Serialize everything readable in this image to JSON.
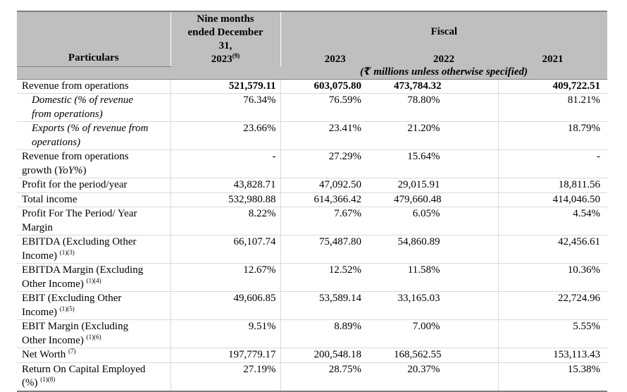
{
  "header": {
    "particulars": "Particulars",
    "nine_months_line1": "Nine months",
    "nine_months_line2": "ended December",
    "nine_months_line3": "31,",
    "nine_months_year": "2023",
    "nine_months_note": "(9)",
    "fiscal": "Fiscal",
    "years": [
      "2023",
      "2022",
      "2021"
    ],
    "units": "(₹ millions unless otherwise specified)"
  },
  "rows": [
    {
      "label": "Revenue from operations",
      "note": "",
      "values": [
        "521,579.11",
        "603,075.80",
        "473,784.32",
        "409,722.51"
      ]
    },
    {
      "label": "Domestic (% of revenue from operations)",
      "note": "",
      "values": [
        "76.34%",
        "76.59%",
        "78.80%",
        "81.21%"
      ]
    },
    {
      "label": "Exports (% of revenue from operations)",
      "note": "",
      "values": [
        "23.66%",
        "23.41%",
        "21.20%",
        "18.79%"
      ]
    },
    {
      "label": "Revenue from operations growth (YoY%)",
      "note": "",
      "values": [
        "-",
        "27.29%",
        "15.64%",
        "-"
      ]
    },
    {
      "label": "Profit for the period/year",
      "note": "",
      "values": [
        "43,828.71",
        "47,092.50",
        "29,015.91",
        "18,811.56"
      ]
    },
    {
      "label": "Total income",
      "note": "",
      "values": [
        "532,980.88",
        "614,366.42",
        "479,660.48",
        "414,046.50"
      ]
    },
    {
      "label": "Profit For The Period/ Year Margin",
      "note": "",
      "values": [
        "8.22%",
        "7.67%",
        "6.05%",
        "4.54%"
      ]
    },
    {
      "label": "EBITDA (Excluding Other Income)",
      "note": "(1)(3)",
      "values": [
        "66,107.74",
        "75,487.80",
        "54,860.89",
        "42,456.61"
      ]
    },
    {
      "label": "EBITDA Margin (Excluding Other Income)",
      "note": "(1)(4)",
      "values": [
        "12.67%",
        "12.52%",
        "11.58%",
        "10.36%"
      ]
    },
    {
      "label": "EBIT (Excluding Other Income)",
      "note": "(1)(5)",
      "values": [
        "49,606.85",
        "53,589.14",
        "33,165.03",
        "22,724.96"
      ]
    },
    {
      "label": "EBIT Margin (Excluding Other Income)",
      "note": "(1)(6)",
      "values": [
        "9.51%",
        "8.89%",
        "7.00%",
        "5.55%"
      ]
    },
    {
      "label": "Net Worth",
      "note": "(7)",
      "values": [
        "197,779.17",
        "200,548.18",
        "168,562.55",
        "153,113.43"
      ]
    },
    {
      "label": "Return On Capital Employed (%)",
      "note": "(1)(8)",
      "values": [
        "27.19%",
        "28.75%",
        "20.37%",
        "15.38%"
      ]
    }
  ],
  "line_parts": {
    "domestic_a": "Domestic (% of revenue",
    "domestic_b": "from operations)",
    "exports_a": "Exports (% of revenue from",
    "exports_b": "operations)",
    "growth_a": "Revenue from operations",
    "growth_b": "growth (",
    "growth_c": "YoY%",
    "growth_d": ")",
    "margin_a": "Profit For The Period/ Year",
    "margin_b": "Margin",
    "ebitda_a": "EBITDA (Excluding Other",
    "ebitda_b": "Income)",
    "ebitdam_a": "EBITDA Margin (Excluding",
    "ebitdam_b": "Other Income)",
    "ebit_a": "EBIT (Excluding Other",
    "ebit_b": "Income)",
    "ebitm_a": "EBIT Margin (Excluding",
    "ebitm_b": "Other Income)",
    "roce_a": "Return On Capital Employed",
    "roce_b": "(%)"
  }
}
